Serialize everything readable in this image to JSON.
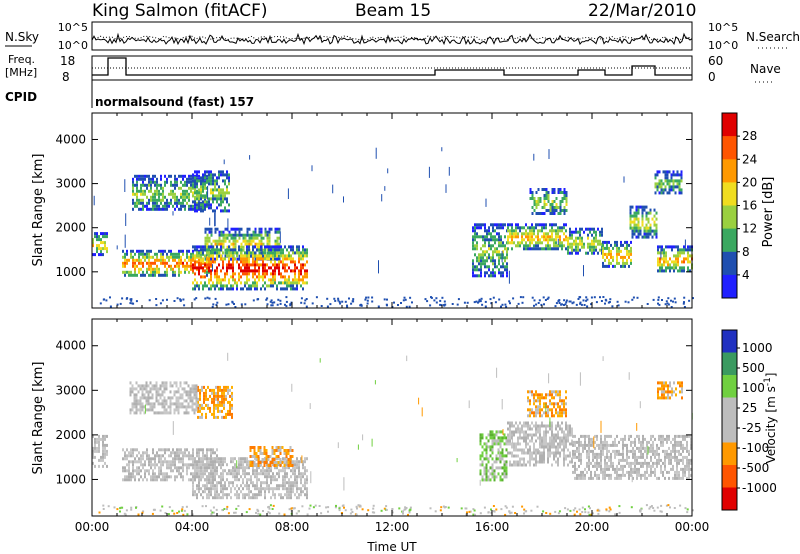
{
  "header": {
    "station": "King Salmon (fitACF)",
    "beam": "Beam 15",
    "date": "22/Mar/2010"
  },
  "top_panels": {
    "nsky_label": "N.Sky",
    "nsearch_label": "N.Search",
    "noise_ticks": [
      "10^5",
      "10^0"
    ],
    "freq_label_line1": "Freq.",
    "freq_label_line2": "[MHz]",
    "freq_ticks": [
      "18",
      "8"
    ],
    "nave_label": "Nave",
    "nave_ticks": [
      "60",
      "0"
    ],
    "cpid_label": "CPID",
    "cpid_value": "normalsound (fast) 157"
  },
  "chart_data": [
    {
      "type": "heatmap",
      "name": "power-panel",
      "ylabel": "Slant Range [km]",
      "xlabel": "",
      "x_range_hours": [
        0,
        24
      ],
      "x_ticks": [
        "00:00",
        "04:00",
        "08:00",
        "12:00",
        "16:00",
        "20:00",
        "00:00"
      ],
      "y_range_km": [
        180,
        4600
      ],
      "y_ticks": [
        1000,
        2000,
        3000,
        4000
      ],
      "colorbar": {
        "label": "Power [dB]",
        "ticks": [
          "28",
          "24",
          "20",
          "16",
          "12",
          "8",
          "4"
        ],
        "colors": [
          "#e00000",
          "#ff5500",
          "#ff9900",
          "#f0dd20",
          "#9ad040",
          "#3aa860",
          "#1f4fb0",
          "#2020ff"
        ]
      },
      "regions": [
        {
          "t0": 0.0,
          "t1": 0.6,
          "r0": 1400,
          "r1": 1900,
          "level": 0.55
        },
        {
          "t0": 1.2,
          "t1": 4.8,
          "r0": 900,
          "r1": 1500,
          "level": 0.7
        },
        {
          "t0": 4.5,
          "t1": 7.5,
          "r0": 1300,
          "r1": 2000,
          "level": 0.45
        },
        {
          "t0": 4.0,
          "t1": 8.6,
          "r0": 600,
          "r1": 1600,
          "level": 0.85
        },
        {
          "t0": 1.6,
          "t1": 4.6,
          "r0": 2400,
          "r1": 3200,
          "level": 0.3
        },
        {
          "t0": 4.0,
          "t1": 5.5,
          "r0": 2400,
          "r1": 3300,
          "level": 0.3
        },
        {
          "t0": 15.2,
          "t1": 16.6,
          "r0": 900,
          "r1": 2100,
          "level": 0.3
        },
        {
          "t0": 16.6,
          "t1": 19.0,
          "r0": 1500,
          "r1": 2100,
          "level": 0.55
        },
        {
          "t0": 17.5,
          "t1": 19.0,
          "r0": 2300,
          "r1": 2900,
          "level": 0.35
        },
        {
          "t0": 19.0,
          "t1": 20.4,
          "r0": 1400,
          "r1": 2000,
          "level": 0.4
        },
        {
          "t0": 20.4,
          "t1": 21.6,
          "r0": 1100,
          "r1": 1700,
          "level": 0.55
        },
        {
          "t0": 21.5,
          "t1": 22.6,
          "r0": 1800,
          "r1": 2500,
          "level": 0.45
        },
        {
          "t0": 22.6,
          "t1": 24.0,
          "r0": 1000,
          "r1": 1600,
          "level": 0.6
        },
        {
          "t0": 22.5,
          "t1": 23.6,
          "r0": 2800,
          "r1": 3300,
          "level": 0.3
        }
      ]
    },
    {
      "type": "heatmap",
      "name": "velocity-panel",
      "ylabel": "Slant Range [km]",
      "xlabel": "Time UT",
      "x_range_hours": [
        0,
        24
      ],
      "x_ticks": [
        "00:00",
        "04:00",
        "08:00",
        "12:00",
        "16:00",
        "20:00",
        "00:00"
      ],
      "y_range_km": [
        180,
        4600
      ],
      "y_ticks": [
        1000,
        2000,
        3000,
        4000
      ],
      "colorbar": {
        "label": "Velocity [m s^-1]",
        "ticks": [
          "1000",
          "500",
          "100",
          "25",
          "-25",
          "-100",
          "-500",
          "-1000"
        ],
        "colors": [
          "#2030c0",
          "#3a9a60",
          "#70d040",
          "#bdbdbd",
          "#bdbdbd",
          "#ff9900",
          "#ff5500",
          "#e00000"
        ]
      },
      "regions": [
        {
          "t0": 0.0,
          "t1": 0.6,
          "r0": 1300,
          "r1": 2000,
          "class": "gray"
        },
        {
          "t0": 1.2,
          "t1": 5.0,
          "r0": 1000,
          "r1": 1700,
          "class": "gray"
        },
        {
          "t0": 4.0,
          "t1": 8.6,
          "r0": 600,
          "r1": 1500,
          "class": "gray"
        },
        {
          "t0": 6.3,
          "t1": 8.0,
          "r0": 1300,
          "r1": 1750,
          "class": "orange"
        },
        {
          "t0": 4.2,
          "t1": 5.6,
          "r0": 2400,
          "r1": 3100,
          "class": "orange"
        },
        {
          "t0": 1.5,
          "t1": 4.2,
          "r0": 2500,
          "r1": 3200,
          "class": "gray"
        },
        {
          "t0": 15.5,
          "t1": 16.6,
          "r0": 1000,
          "r1": 2100,
          "class": "green"
        },
        {
          "t0": 16.6,
          "t1": 19.2,
          "r0": 1300,
          "r1": 2300,
          "class": "gray"
        },
        {
          "t0": 17.4,
          "t1": 19.0,
          "r0": 2400,
          "r1": 3000,
          "class": "orange"
        },
        {
          "t0": 19.2,
          "t1": 24.0,
          "r0": 1000,
          "r1": 2000,
          "class": "gray"
        },
        {
          "t0": 22.6,
          "t1": 23.6,
          "r0": 2800,
          "r1": 3200,
          "class": "orange"
        }
      ]
    }
  ]
}
